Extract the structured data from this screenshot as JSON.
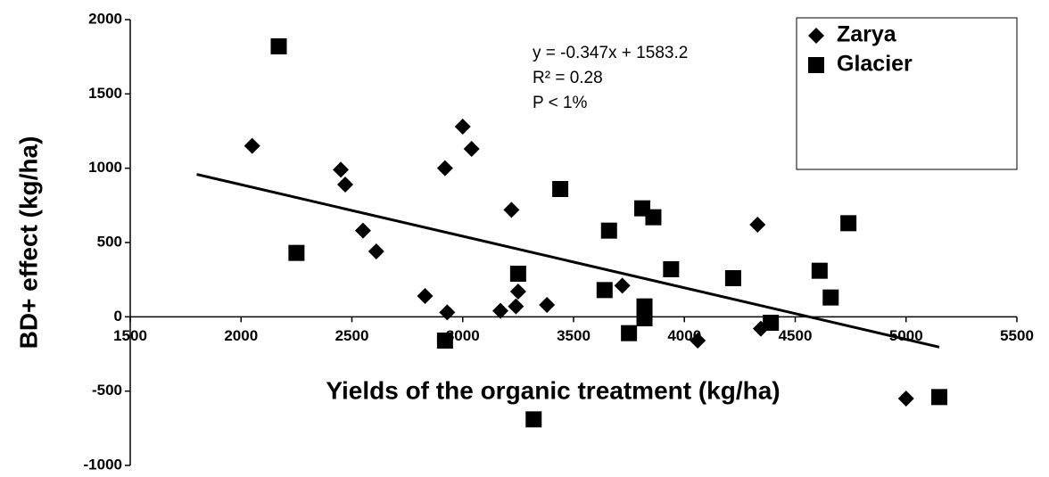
{
  "chart_data": {
    "type": "scatter",
    "x_label": "Yields of the organic treatment (kg/ha)",
    "y_label": "BD+ effect (kg/ha)",
    "annotations": [
      "y = -0.347x + 1583.2",
      "R² = 0.28",
      "P < 1%"
    ],
    "xlim": [
      1500,
      5500
    ],
    "xticks": [
      1500,
      2000,
      2500,
      3000,
      3500,
      4000,
      4500,
      5000,
      5500
    ],
    "ylim": [
      -1000,
      2000
    ],
    "yticks": [
      -1000,
      -500,
      0,
      500,
      1000,
      1500,
      2000
    ],
    "grid": false,
    "legend": "top-right",
    "trendline": {
      "color": "#000000",
      "x": [
        1800,
        5150
      ],
      "y": [
        958.6,
        -203.9
      ]
    },
    "series": [
      {
        "name": "Zarya",
        "color": "#000000",
        "marker": "diamond",
        "x": [
          2050,
          2450,
          2470,
          2550,
          2610,
          2830,
          2920,
          2930,
          3000,
          3040,
          3170,
          3220,
          3240,
          3250,
          3380,
          3720,
          4060,
          4330,
          4345,
          5000
        ],
        "values": [
          1150,
          990,
          890,
          580,
          440,
          140,
          1000,
          30,
          1280,
          1130,
          40,
          720,
          70,
          170,
          80,
          210,
          -160,
          620,
          -80,
          -550
        ]
      },
      {
        "name": "Glacier",
        "color": "#000000",
        "marker": "square",
        "x": [
          2170,
          2250,
          2920,
          3250,
          3320,
          3440,
          3640,
          3660,
          3750,
          3810,
          3820,
          3820,
          3860,
          3940,
          4220,
          4390,
          4610,
          4660,
          4740,
          5150
        ],
        "values": [
          1820,
          430,
          -160,
          290,
          -690,
          860,
          180,
          580,
          -110,
          730,
          70,
          -10,
          670,
          320,
          260,
          -40,
          310,
          130,
          630,
          -540
        ]
      }
    ]
  }
}
